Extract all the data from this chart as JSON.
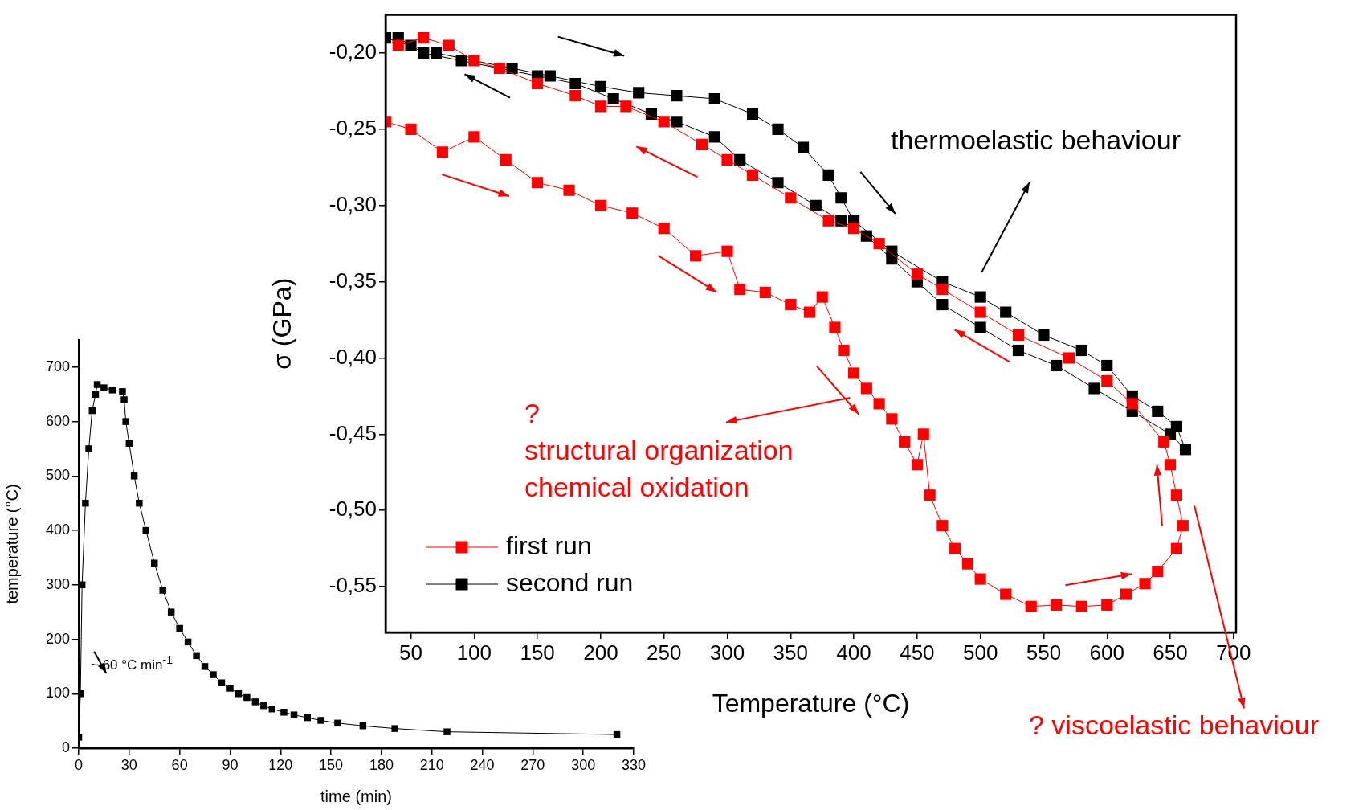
{
  "chart_data": [
    {
      "type": "line",
      "xlabel": "Temperature (°C)",
      "ylabel": "σ (GPa)",
      "xlim": [
        30,
        702
      ],
      "ylim": [
        -0.58,
        -0.175
      ],
      "xticks": [
        50,
        100,
        150,
        200,
        250,
        300,
        350,
        400,
        450,
        500,
        550,
        600,
        650,
        700
      ],
      "yticks": [
        {
          "value": -0.2,
          "label": "-0,20"
        },
        {
          "value": -0.25,
          "label": "-0,25"
        },
        {
          "value": -0.3,
          "label": "-0,30"
        },
        {
          "value": -0.35,
          "label": "-0,35"
        },
        {
          "value": -0.4,
          "label": "-0,40"
        },
        {
          "value": -0.45,
          "label": "-0,45"
        },
        {
          "value": -0.5,
          "label": "-0,50"
        },
        {
          "value": -0.55,
          "label": "-0,55"
        }
      ],
      "marker": "square",
      "legend": "bottom left",
      "annotations": [
        "thermoelastic behaviour",
        "?\nstructural organization\nchemical oxidation",
        "? viscoelastic behaviour"
      ],
      "series": [
        {
          "name": "first run",
          "color": "#ff0000",
          "x": [
            30,
            50,
            75,
            100,
            125,
            150,
            175,
            200,
            225,
            250,
            275,
            300,
            310,
            330,
            350,
            365,
            375,
            385,
            392,
            400,
            410,
            420,
            430,
            440,
            450,
            455,
            460,
            470,
            480,
            490,
            500,
            520,
            540,
            560,
            580,
            600,
            615,
            630,
            640,
            655,
            660,
            655,
            650,
            645,
            620,
            600,
            570,
            530,
            500,
            470,
            450,
            420,
            400,
            380,
            350,
            320,
            300,
            280,
            250,
            220,
            200,
            180,
            150,
            120,
            100,
            80,
            60,
            40
          ],
          "values": [
            -0.245,
            -0.25,
            -0.265,
            -0.255,
            -0.27,
            -0.285,
            -0.29,
            -0.3,
            -0.305,
            -0.315,
            -0.333,
            -0.33,
            -0.355,
            -0.357,
            -0.365,
            -0.37,
            -0.36,
            -0.38,
            -0.395,
            -0.41,
            -0.42,
            -0.43,
            -0.44,
            -0.455,
            -0.47,
            -0.45,
            -0.49,
            -0.51,
            -0.525,
            -0.535,
            -0.545,
            -0.555,
            -0.563,
            -0.562,
            -0.563,
            -0.562,
            -0.555,
            -0.548,
            -0.54,
            -0.525,
            -0.51,
            -0.49,
            -0.47,
            -0.455,
            -0.43,
            -0.415,
            -0.4,
            -0.385,
            -0.37,
            -0.355,
            -0.345,
            -0.325,
            -0.315,
            -0.31,
            -0.295,
            -0.28,
            -0.27,
            -0.26,
            -0.245,
            -0.235,
            -0.235,
            -0.228,
            -0.22,
            -0.21,
            -0.205,
            -0.195,
            -0.19,
            -0.195
          ]
        },
        {
          "name": "second run",
          "color": "#000000",
          "x": [
            30,
            50,
            70,
            100,
            130,
            160,
            200,
            230,
            260,
            290,
            320,
            340,
            360,
            380,
            390,
            400,
            415,
            430,
            450,
            470,
            500,
            520,
            550,
            580,
            600,
            620,
            640,
            655,
            662,
            650,
            620,
            590,
            560,
            530,
            500,
            470,
            450,
            430,
            410,
            390,
            370,
            340,
            310,
            290,
            260,
            240,
            210,
            180,
            150,
            120,
            90,
            60,
            40
          ],
          "values": [
            -0.19,
            -0.195,
            -0.2,
            null,
            -0.21,
            -0.215,
            -0.222,
            -0.226,
            -0.228,
            -0.23,
            -0.24,
            -0.25,
            -0.262,
            -0.28,
            -0.295,
            -0.31,
            null,
            -0.33,
            null,
            -0.35,
            -0.36,
            -0.37,
            -0.385,
            -0.395,
            -0.405,
            -0.425,
            -0.435,
            -0.445,
            -0.46,
            -0.45,
            -0.435,
            -0.42,
            -0.405,
            -0.395,
            -0.38,
            -0.365,
            -0.35,
            -0.335,
            -0.32,
            -0.31,
            -0.3,
            -0.285,
            -0.27,
            -0.255,
            -0.245,
            -0.24,
            -0.23,
            -0.22,
            -0.215,
            null,
            -0.205,
            -0.2,
            -0.19
          ]
        }
      ]
    },
    {
      "type": "line",
      "xlabel": "time (min)",
      "ylabel": "temperature (°C)",
      "xlim": [
        0,
        330
      ],
      "ylim": [
        0,
        750
      ],
      "xticks": [
        0,
        30,
        60,
        90,
        120,
        150,
        180,
        210,
        240,
        270,
        300,
        330
      ],
      "yticks": [
        0,
        100,
        200,
        300,
        400,
        500,
        600,
        700
      ],
      "marker": "square",
      "annotations": [
        "~ 60 °C min$^{-1}$"
      ],
      "series": [
        {
          "color": "#000000",
          "x": [
            0,
            1,
            2,
            4,
            6,
            8,
            10,
            11,
            15,
            20,
            26,
            27,
            28,
            30,
            33,
            36,
            40,
            45,
            50,
            55,
            60,
            65,
            70,
            75,
            80,
            85,
            90,
            95,
            100,
            105,
            110,
            115,
            122,
            128,
            136,
            144,
            154,
            169,
            188,
            219,
            320
          ],
          "values": [
            20,
            100,
            300,
            450,
            550,
            620,
            650,
            668,
            662,
            658,
            655,
            640,
            600,
            560,
            500,
            450,
            400,
            340,
            290,
            250,
            220,
            195,
            170,
            150,
            135,
            120,
            110,
            100,
            93,
            85,
            78,
            72,
            66,
            61,
            56,
            51,
            46,
            41,
            36,
            30,
            25
          ]
        }
      ]
    }
  ]
}
